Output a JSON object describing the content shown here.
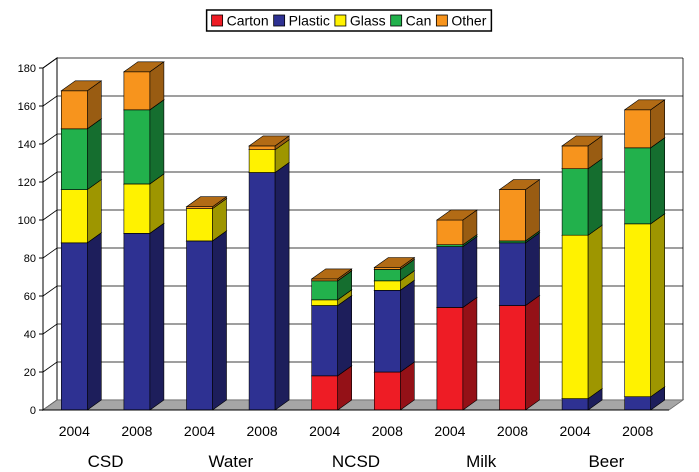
{
  "chart_data": {
    "type": "bar",
    "stacked": true,
    "three_d": true,
    "grid": true,
    "legend_position": "top-center",
    "ylim": [
      0,
      180
    ],
    "yticks": [
      0,
      20,
      40,
      60,
      80,
      100,
      120,
      140,
      160,
      180
    ],
    "categories": [
      "2004",
      "2008",
      "2004",
      "2008",
      "2004",
      "2008",
      "2004",
      "2008",
      "2004",
      "2008"
    ],
    "groups": [
      {
        "label": "CSD",
        "span": [
          0,
          1
        ]
      },
      {
        "label": "Water",
        "span": [
          2,
          3
        ]
      },
      {
        "label": "NCSD",
        "span": [
          4,
          5
        ]
      },
      {
        "label": "Milk",
        "span": [
          6,
          7
        ]
      },
      {
        "label": "Beer",
        "span": [
          8,
          9
        ]
      }
    ],
    "series": [
      {
        "name": "Carton",
        "color": "#EE1C25",
        "values": [
          0,
          0,
          0,
          0,
          18,
          20,
          54,
          55,
          0,
          0
        ]
      },
      {
        "name": "Plastic",
        "color": "#2E3192",
        "values": [
          88,
          93,
          89,
          125,
          37,
          43,
          32,
          33,
          6,
          7
        ]
      },
      {
        "name": "Glass",
        "color": "#FFF200",
        "values": [
          28,
          26,
          17,
          12,
          3,
          5,
          0,
          0,
          86,
          91
        ]
      },
      {
        "name": "Can",
        "color": "#22B14C",
        "values": [
          32,
          39,
          0,
          0,
          10,
          6,
          1,
          1,
          35,
          40
        ]
      },
      {
        "name": "Other",
        "color": "#F7941D",
        "values": [
          20,
          20,
          1,
          2,
          1,
          1,
          13,
          27,
          12,
          20
        ]
      }
    ]
  }
}
